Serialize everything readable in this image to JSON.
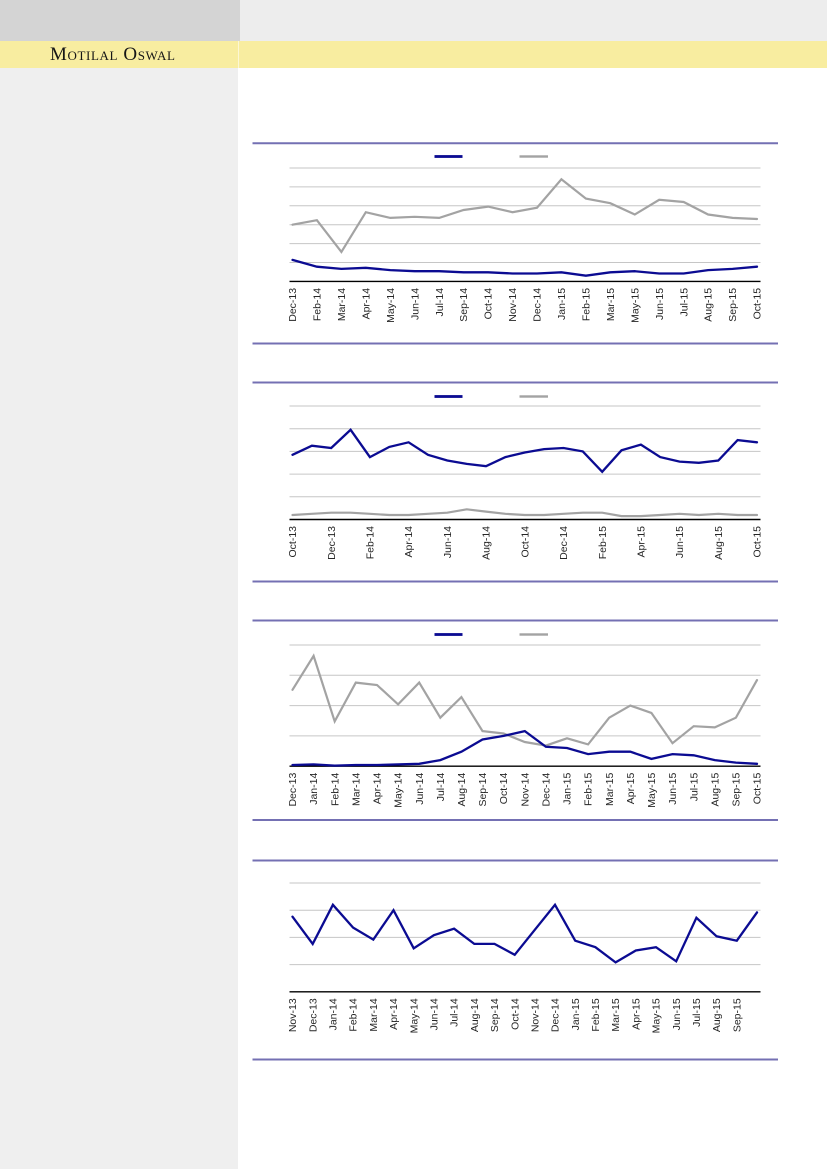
{
  "header": {
    "logo_text": "Motilal Oswal",
    "band_color": "#F8EDA0",
    "top_left_block_color": "#D4D4D4",
    "top_right_strip_color": "#EDEDED",
    "logo_text_color": "#161616"
  },
  "sidebar": {
    "color": "#EFEFEF"
  },
  "colors": {
    "navy": "#0B0B92",
    "gray": "#A3A3A3",
    "gridline": "#C6C6C6",
    "axis": "#000000",
    "separator_rule": "#7470B3",
    "label_text": "#262626"
  },
  "charts": [
    {
      "id": "chart-1",
      "legend": {
        "labels_visible": false,
        "entries": [
          {
            "name": "navy-line",
            "color": "#0B0B92",
            "label": ""
          },
          {
            "name": "gray-line",
            "color": "#A3A3A3",
            "label": ""
          }
        ]
      },
      "chart_data": {
        "type": "line",
        "title": "",
        "xlabel": "",
        "ylabel": "",
        "x_tick_labels": [
          "Dec-13",
          "Feb-14",
          "Mar-14",
          "Apr-14",
          "May-14",
          "Jun-14",
          "Jul-14",
          "Sep-14",
          "Oct-14",
          "Nov-14",
          "Dec-14",
          "Jan-15",
          "Feb-15",
          "Mar-15",
          "May-15",
          "Jun-15",
          "Jul-15",
          "Aug-15",
          "Sep-15",
          "Oct-15"
        ],
        "tick_every": 1,
        "gridlines": 6,
        "y_axis_tick_labels_visible": false,
        "values_unit": "percent of plot height (0 = x-axis, 100 = top gridline); estimated, no y-axis labels printed",
        "series": [
          {
            "name": "navy-line",
            "values": [
              19,
              13,
              11,
              12,
              10,
              9,
              9,
              8,
              8,
              7,
              7,
              8,
              5,
              8,
              9,
              7,
              7,
              10,
              11,
              13
            ]
          },
          {
            "name": "gray-line",
            "values": [
              50,
              54,
              26,
              61,
              56,
              57,
              56,
              63,
              66,
              61,
              65,
              90,
              73,
              69,
              59,
              72,
              70,
              59,
              56,
              55
            ]
          }
        ]
      }
    },
    {
      "id": "chart-2",
      "legend": {
        "labels_visible": false,
        "entries": [
          {
            "name": "navy-line",
            "color": "#0B0B92",
            "label": ""
          },
          {
            "name": "gray-line",
            "color": "#A3A3A3",
            "label": ""
          }
        ]
      },
      "chart_data": {
        "type": "line",
        "title": "",
        "xlabel": "",
        "ylabel": "",
        "x_tick_labels": [
          "Oct-13",
          "Dec-13",
          "Feb-14",
          "Apr-14",
          "Jun-14",
          "Aug-14",
          "Oct-14",
          "Dec-14",
          "Feb-15",
          "Apr-15",
          "Jun-15",
          "Aug-15",
          "Oct-15"
        ],
        "tick_every": 2,
        "x_points_count": 25,
        "gridlines": 5,
        "y_axis_tick_labels_visible": false,
        "values_unit": "percent of plot height (0 = x-axis, 100 = top gridline); estimated, no y-axis labels printed",
        "series": [
          {
            "name": "navy-line",
            "values": [
              57,
              65,
              63,
              79,
              55,
              64,
              68,
              57,
              52,
              49,
              47,
              55,
              59,
              62,
              63,
              60,
              42,
              61,
              66,
              55,
              51,
              50,
              52,
              70,
              68
            ]
          },
          {
            "name": "gray-line",
            "values": [
              4,
              5,
              6,
              6,
              5,
              4,
              4,
              5,
              6,
              9,
              7,
              5,
              4,
              4,
              5,
              6,
              6,
              3,
              3,
              4,
              5,
              4,
              5,
              4,
              4
            ]
          }
        ]
      }
    },
    {
      "id": "chart-3",
      "legend": {
        "labels_visible": false,
        "entries": [
          {
            "name": "navy-line",
            "color": "#0B0B92",
            "label": ""
          },
          {
            "name": "gray-line",
            "color": "#A3A3A3",
            "label": ""
          }
        ]
      },
      "chart_data": {
        "type": "line",
        "title": "",
        "xlabel": "",
        "ylabel": "",
        "x_tick_labels": [
          "Dec-13",
          "Jan-14",
          "Feb-14",
          "Mar-14",
          "Apr-14",
          "May-14",
          "Jun-14",
          "Jul-14",
          "Aug-14",
          "Sep-14",
          "Oct-14",
          "Nov-14",
          "Dec-14",
          "Jan-15",
          "Feb-15",
          "Mar-15",
          "Apr-15",
          "May-15",
          "Jun-15",
          "Jul-15",
          "Aug-15",
          "Sep-15",
          "Oct-15"
        ],
        "tick_every": 1,
        "gridlines": 4,
        "y_axis_tick_labels_visible": false,
        "values_unit": "percent of plot height (0 = x-axis, 100 = top gridline); estimated, no y-axis labels printed",
        "series": [
          {
            "name": "navy-line",
            "values": [
              1,
              1.5,
              0.5,
              1,
              1,
              1.5,
              2,
              5,
              12,
              22,
              25,
              29,
              16,
              15,
              10,
              12,
              12,
              6,
              10,
              9,
              5,
              3,
              2
            ]
          },
          {
            "name": "gray-line",
            "values": [
              63,
              91,
              37,
              69,
              67,
              51,
              69,
              40,
              57,
              29,
              27,
              20,
              17,
              23,
              18,
              40,
              50,
              44,
              19,
              33,
              32,
              40,
              71
            ]
          }
        ]
      }
    },
    {
      "id": "chart-4",
      "legend": null,
      "chart_data": {
        "type": "line",
        "title": "",
        "xlabel": "",
        "ylabel": "",
        "x_tick_labels": [
          "Nov-13",
          "Dec-13",
          "Jan-14",
          "Feb-14",
          "Mar-14",
          "Apr-14",
          "May-14",
          "Jun-14",
          "Jul-14",
          "Aug-14",
          "Sep-14",
          "Oct-14",
          "Nov-14",
          "Dec-14",
          "Jan-15",
          "Feb-15",
          "Mar-15",
          "Apr-15",
          "May-15",
          "Jun-15",
          "Jul-15",
          "Aug-15",
          "Sep-15"
        ],
        "tick_every": 1,
        "final_point_unlabeled": true,
        "x_points_count": 24,
        "gridlines": 4,
        "y_axis_tick_labels_visible": false,
        "values_unit": "percent of plot height (0 = x-axis, 100 = top gridline); estimated, no y-axis labels printed",
        "series": [
          {
            "name": "navy-line",
            "values": [
              69,
              44,
              80,
              59,
              48,
              75,
              40,
              52,
              58,
              44,
              44,
              34,
              57,
              80,
              47,
              41,
              27,
              38,
              41,
              28,
              68,
              51,
              47,
              73
            ]
          }
        ]
      }
    }
  ]
}
